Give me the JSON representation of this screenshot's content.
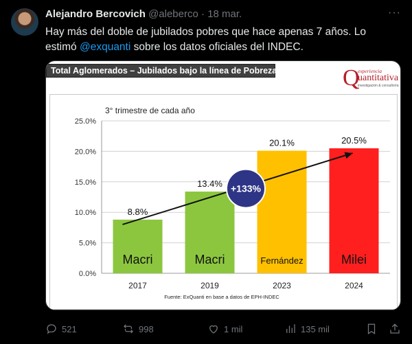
{
  "tweet": {
    "author_name": "Alejandro Bercovich",
    "handle": "@aleberco",
    "separator": "·",
    "date": "18 mar.",
    "more": "···",
    "text_before": "Hay más del doble de jubilados pobres que hace apenas 7 años. Lo estimó ",
    "mention": "@exquanti",
    "text_after": " sobre los datos oficiales del INDEC."
  },
  "media": {
    "title": "Total Aglomerados – Jubilados bajo la línea de Pobreza",
    "brand_top": "experiencia",
    "brand_main": "uantitativa",
    "brand_letter": "Q",
    "brand_sub": "investigación & consultoría"
  },
  "actions": {
    "replies": "521",
    "reposts": "998",
    "likes": "1 mil",
    "views": "135 mil"
  },
  "chart_data": {
    "type": "bar",
    "title": "Total Aglomerados – Jubilados bajo la línea de Pobreza",
    "subtitle": "3° trimestre de cada año",
    "categories": [
      "2017",
      "2019",
      "2023",
      "2024"
    ],
    "values": [
      8.8,
      13.4,
      20.1,
      20.5
    ],
    "value_labels": [
      "8.8%",
      "13.4%",
      "20.1%",
      "20.5%"
    ],
    "bar_labels": [
      "Macri",
      "Macri",
      "Fernández",
      "Milei"
    ],
    "bar_colors": [
      "#8cc63f",
      "#8cc63f",
      "#ffc000",
      "#ff1f1f"
    ],
    "ylim": [
      0,
      25
    ],
    "yticks": [
      0,
      5,
      10,
      15,
      20,
      25
    ],
    "ytick_labels": [
      "0.0%",
      "5.0%",
      "10.0%",
      "15.0%",
      "20.0%",
      "25.0%"
    ],
    "grid": true,
    "annotation": "+133%",
    "trend_from": {
      "x": "2017",
      "y": 8.0
    },
    "trend_to": {
      "x": "2024",
      "y": 19.7
    },
    "source": "Fuente: ExQuanti en base a datos de EPH-INDEC"
  }
}
